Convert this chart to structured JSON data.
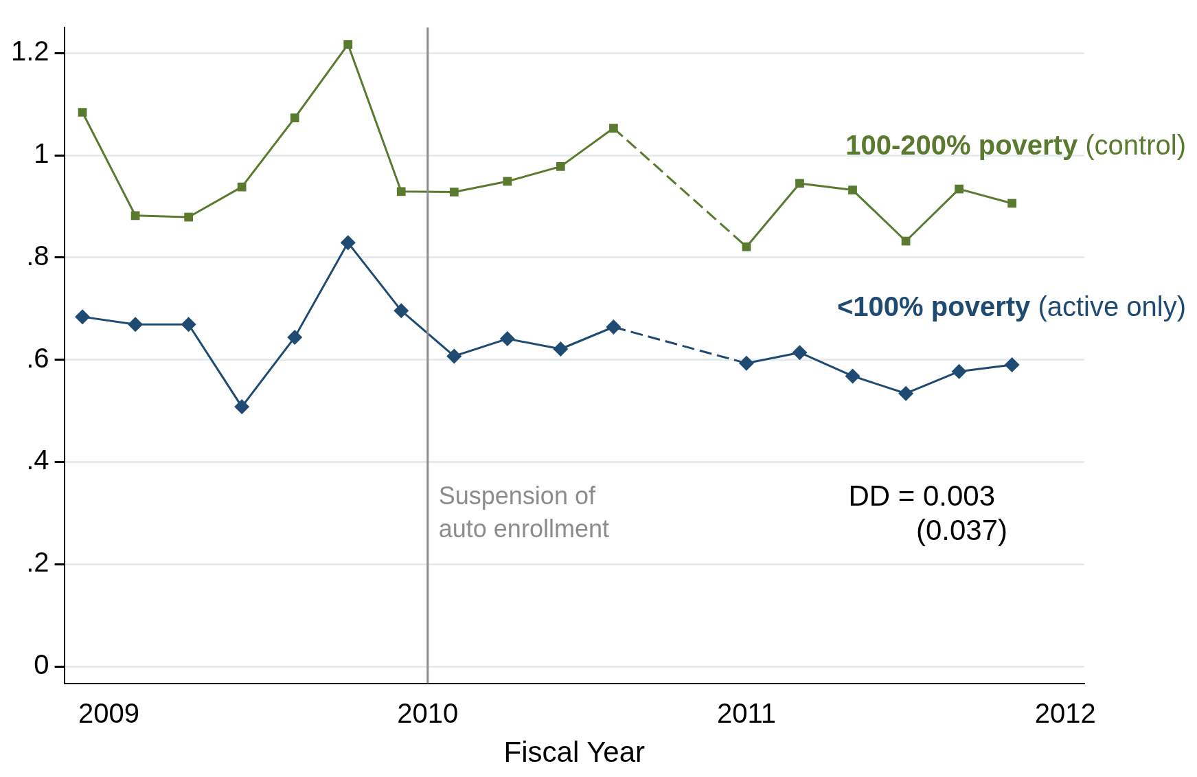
{
  "chart_data": {
    "type": "line",
    "xlabel": "Fiscal Year",
    "xlim": [
      2008.86,
      2012.06
    ],
    "xticks": [
      2009,
      2010,
      2011,
      2012
    ],
    "ylim": [
      -0.033,
      1.25
    ],
    "yticks": [
      0,
      {
        "value": 0.2,
        "label": ".2"
      },
      {
        "value": 0.4,
        "label": ".4"
      },
      {
        "value": 0.6,
        "label": ".6"
      },
      {
        "value": 0.8,
        "label": ".8"
      },
      1,
      1.2
    ],
    "grid": "y",
    "legend": false,
    "series": [
      {
        "name": "100-200% poverty (control)",
        "color": "#5a7a30",
        "marker": "square",
        "line_style": "solid",
        "x": [
          2008.917,
          2009.083,
          2009.25,
          2009.417,
          2009.583,
          2009.75,
          2009.917,
          2010.083,
          2010.25,
          2010.417,
          2010.583,
          2010.75,
          2011,
          2011.167,
          2011.333,
          2011.5,
          2011.667,
          2011.833
        ],
        "values": [
          1.084,
          0.882,
          0.879,
          0.938,
          1.073,
          1.217,
          0.929,
          0.928,
          0.949,
          0.978,
          1.053,
          null,
          0.821,
          0.945,
          0.932,
          0.832,
          0.934,
          0.906
        ]
      },
      {
        "name": "<100% poverty (active only)",
        "color": "#1f4a72",
        "marker": "diamond",
        "line_style": "solid",
        "x": [
          2008.917,
          2009.083,
          2009.25,
          2009.417,
          2009.583,
          2009.75,
          2009.917,
          2010.083,
          2010.25,
          2010.417,
          2010.583,
          2010.75,
          2011,
          2011.167,
          2011.333,
          2011.5,
          2011.667,
          2011.833
        ],
        "values": [
          0.684,
          0.669,
          0.669,
          0.508,
          0.644,
          0.829,
          0.696,
          0.607,
          0.641,
          0.621,
          0.664,
          null,
          0.593,
          0.614,
          0.568,
          0.534,
          0.577,
          0.59
        ]
      }
    ],
    "ref_lines": [
      {
        "axis": "x",
        "value": 2010,
        "label": "Suspension of\nauto enrollment",
        "color": "#8c8c8c"
      }
    ],
    "annotations": [
      "DD = 0.003",
      "(0.037)"
    ]
  }
}
